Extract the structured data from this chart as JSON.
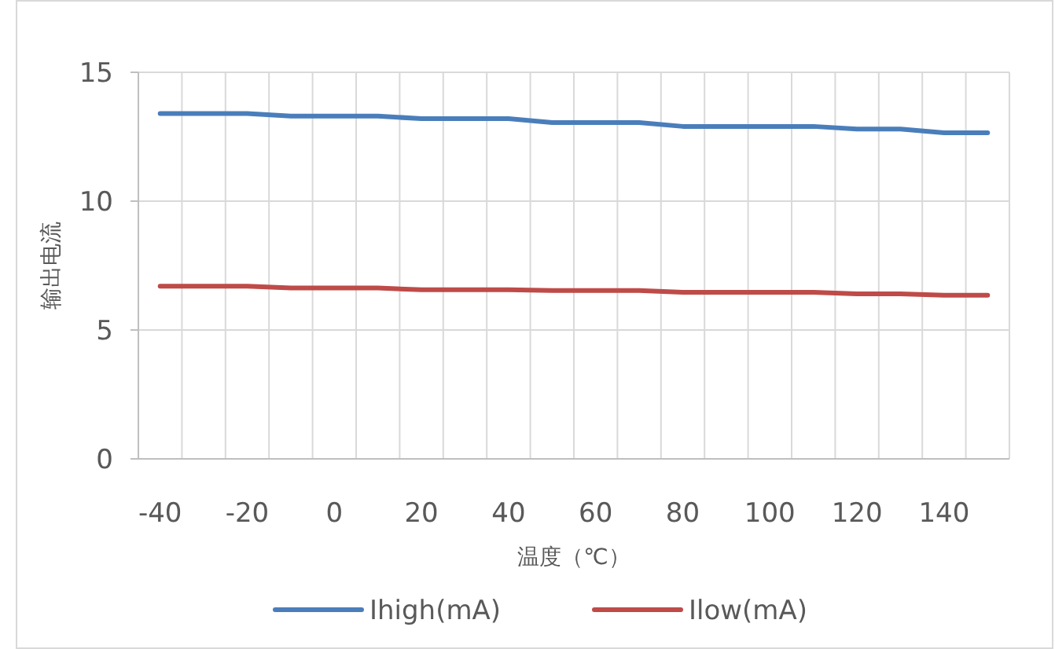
{
  "chart_data": {
    "type": "line",
    "xlabel": "温度（℃）",
    "ylabel": "输出电流",
    "categories": [
      "-40",
      null,
      "-20",
      null,
      "0",
      null,
      "20",
      null,
      "40",
      null,
      "60",
      null,
      "80",
      null,
      "100",
      null,
      "120",
      null,
      "140",
      null
    ],
    "series": [
      {
        "name": "Ihigh(mA)",
        "color": "#4a7ebb",
        "values": [
          13.4,
          13.4,
          13.4,
          13.3,
          13.3,
          13.3,
          13.2,
          13.2,
          13.2,
          13.05,
          13.05,
          13.05,
          12.9,
          12.9,
          12.9,
          12.9,
          12.8,
          12.8,
          12.65,
          12.65
        ]
      },
      {
        "name": "Ilow(mA)",
        "color": "#be4b48",
        "values": [
          6.7,
          6.7,
          6.7,
          6.63,
          6.63,
          6.63,
          6.56,
          6.56,
          6.56,
          6.53,
          6.53,
          6.53,
          6.46,
          6.46,
          6.46,
          6.46,
          6.4,
          6.4,
          6.35,
          6.35
        ]
      }
    ],
    "ylim": [
      0,
      15
    ],
    "yticks": [
      0,
      5,
      10,
      15
    ],
    "grid": true,
    "legend": "bottom"
  }
}
